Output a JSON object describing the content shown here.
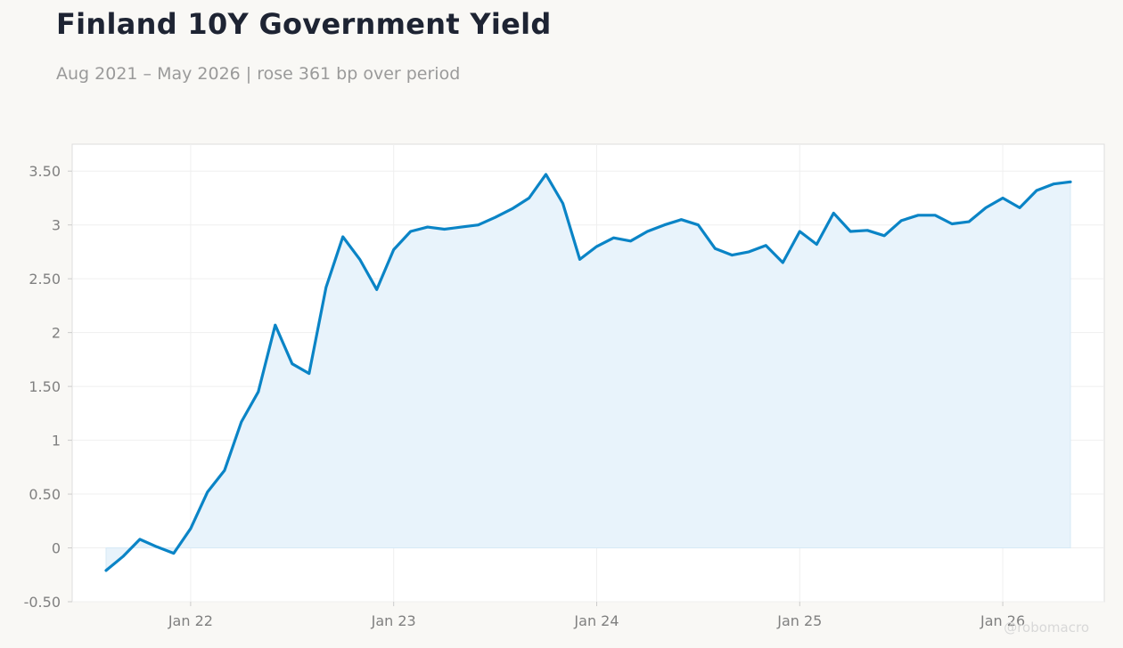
{
  "title": "Finland 10Y Government Yield",
  "subtitle": "Aug 2021 – May 2026 | rose 361 bp over period",
  "watermark": "@robomacro",
  "colors": {
    "line": "#0a84c6",
    "fill": "#e8f3fb",
    "background": "#f9f8f5",
    "plot_bg": "#ffffff"
  },
  "chart_data": {
    "type": "area",
    "title": "Finland 10Y Government Yield",
    "subtitle": "Aug 2021 – May 2026 | rose 361 bp over period",
    "xlabel": "",
    "ylabel": "",
    "ylim": [
      -0.5,
      3.75
    ],
    "xlim": [
      "2021-06",
      "2026-07"
    ],
    "grid": true,
    "legend": "none",
    "y_ticks": [
      {
        "value": -0.5,
        "label": "-0.50"
      },
      {
        "value": 0,
        "label": "0"
      },
      {
        "value": 0.5,
        "label": "0.50"
      },
      {
        "value": 1,
        "label": "1"
      },
      {
        "value": 1.5,
        "label": "1.50"
      },
      {
        "value": 2,
        "label": "2"
      },
      {
        "value": 2.5,
        "label": "2.50"
      },
      {
        "value": 3,
        "label": "3"
      },
      {
        "value": 3.5,
        "label": "3.50"
      }
    ],
    "x_ticks": [
      {
        "value": "2022-01",
        "label": "Jan 22"
      },
      {
        "value": "2023-01",
        "label": "Jan 23"
      },
      {
        "value": "2024-01",
        "label": "Jan 24"
      },
      {
        "value": "2025-01",
        "label": "Jan 25"
      },
      {
        "value": "2026-01",
        "label": "Jan 26"
      }
    ],
    "x": [
      "2021-08",
      "2021-09",
      "2021-10",
      "2021-11",
      "2021-12",
      "2022-01",
      "2022-02",
      "2022-03",
      "2022-04",
      "2022-05",
      "2022-06",
      "2022-07",
      "2022-08",
      "2022-09",
      "2022-10",
      "2022-11",
      "2022-12",
      "2023-01",
      "2023-02",
      "2023-03",
      "2023-04",
      "2023-05",
      "2023-06",
      "2023-07",
      "2023-08",
      "2023-09",
      "2023-10",
      "2023-11",
      "2023-12",
      "2024-01",
      "2024-02",
      "2024-03",
      "2024-04",
      "2024-05",
      "2024-06",
      "2024-07",
      "2024-08",
      "2024-09",
      "2024-10",
      "2024-11",
      "2024-12",
      "2025-01",
      "2025-02",
      "2025-03",
      "2025-04",
      "2025-05",
      "2025-06",
      "2025-07",
      "2025-08",
      "2025-09",
      "2025-10",
      "2025-11",
      "2025-12",
      "2026-01",
      "2026-02",
      "2026-03",
      "2026-04",
      "2026-05"
    ],
    "series": [
      {
        "values": [
          -0.21,
          -0.08,
          0.08,
          0.01,
          -0.05,
          0.18,
          0.52,
          0.72,
          1.17,
          1.45,
          2.07,
          1.71,
          1.62,
          2.42,
          2.89,
          2.68,
          2.4,
          2.77,
          2.94,
          2.98,
          2.96,
          2.98,
          3.0,
          3.07,
          3.15,
          3.25,
          3.47,
          3.2,
          2.68,
          2.8,
          2.88,
          2.85,
          2.94,
          3.0,
          3.05,
          3.0,
          2.78,
          2.72,
          2.75,
          2.81,
          2.65,
          2.94,
          2.82,
          3.11,
          2.94,
          2.95,
          2.9,
          3.04,
          3.09,
          3.09,
          3.01,
          3.03,
          3.16,
          3.25,
          3.16,
          3.32,
          3.38,
          3.4
        ]
      }
    ]
  }
}
